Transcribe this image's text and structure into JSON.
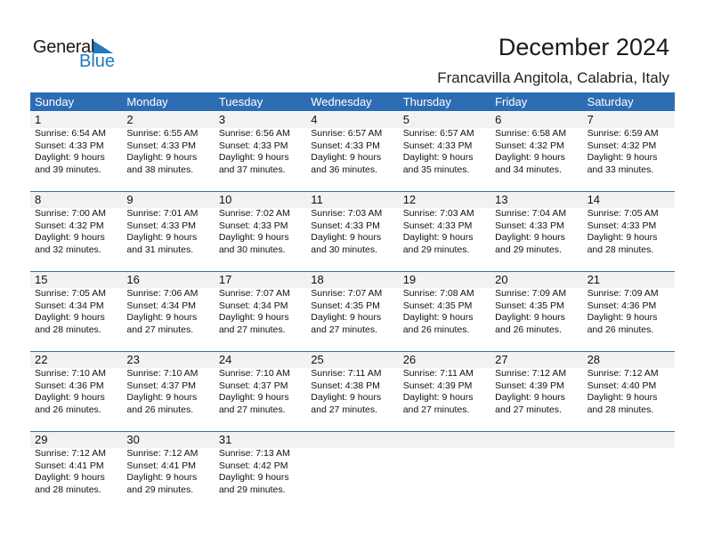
{
  "logo": {
    "text1": "General",
    "text2": "Blue",
    "color": "#1f7ac0"
  },
  "title": "December 2024",
  "location": "Francavilla Angitola, Calabria, Italy",
  "accent": "#2e6db4",
  "weekdays": [
    "Sunday",
    "Monday",
    "Tuesday",
    "Wednesday",
    "Thursday",
    "Friday",
    "Saturday"
  ],
  "weeks": [
    [
      {
        "day": "1",
        "sunrise": "Sunrise: 6:54 AM",
        "sunset": "Sunset: 4:33 PM",
        "daylight": "Daylight: 9 hours",
        "minutes": "and 39 minutes."
      },
      {
        "day": "2",
        "sunrise": "Sunrise: 6:55 AM",
        "sunset": "Sunset: 4:33 PM",
        "daylight": "Daylight: 9 hours",
        "minutes": "and 38 minutes."
      },
      {
        "day": "3",
        "sunrise": "Sunrise: 6:56 AM",
        "sunset": "Sunset: 4:33 PM",
        "daylight": "Daylight: 9 hours",
        "minutes": "and 37 minutes."
      },
      {
        "day": "4",
        "sunrise": "Sunrise: 6:57 AM",
        "sunset": "Sunset: 4:33 PM",
        "daylight": "Daylight: 9 hours",
        "minutes": "and 36 minutes."
      },
      {
        "day": "5",
        "sunrise": "Sunrise: 6:57 AM",
        "sunset": "Sunset: 4:33 PM",
        "daylight": "Daylight: 9 hours",
        "minutes": "and 35 minutes."
      },
      {
        "day": "6",
        "sunrise": "Sunrise: 6:58 AM",
        "sunset": "Sunset: 4:32 PM",
        "daylight": "Daylight: 9 hours",
        "minutes": "and 34 minutes."
      },
      {
        "day": "7",
        "sunrise": "Sunrise: 6:59 AM",
        "sunset": "Sunset: 4:32 PM",
        "daylight": "Daylight: 9 hours",
        "minutes": "and 33 minutes."
      }
    ],
    [
      {
        "day": "8",
        "sunrise": "Sunrise: 7:00 AM",
        "sunset": "Sunset: 4:32 PM",
        "daylight": "Daylight: 9 hours",
        "minutes": "and 32 minutes."
      },
      {
        "day": "9",
        "sunrise": "Sunrise: 7:01 AM",
        "sunset": "Sunset: 4:33 PM",
        "daylight": "Daylight: 9 hours",
        "minutes": "and 31 minutes."
      },
      {
        "day": "10",
        "sunrise": "Sunrise: 7:02 AM",
        "sunset": "Sunset: 4:33 PM",
        "daylight": "Daylight: 9 hours",
        "minutes": "and 30 minutes."
      },
      {
        "day": "11",
        "sunrise": "Sunrise: 7:03 AM",
        "sunset": "Sunset: 4:33 PM",
        "daylight": "Daylight: 9 hours",
        "minutes": "and 30 minutes."
      },
      {
        "day": "12",
        "sunrise": "Sunrise: 7:03 AM",
        "sunset": "Sunset: 4:33 PM",
        "daylight": "Daylight: 9 hours",
        "minutes": "and 29 minutes."
      },
      {
        "day": "13",
        "sunrise": "Sunrise: 7:04 AM",
        "sunset": "Sunset: 4:33 PM",
        "daylight": "Daylight: 9 hours",
        "minutes": "and 29 minutes."
      },
      {
        "day": "14",
        "sunrise": "Sunrise: 7:05 AM",
        "sunset": "Sunset: 4:33 PM",
        "daylight": "Daylight: 9 hours",
        "minutes": "and 28 minutes."
      }
    ],
    [
      {
        "day": "15",
        "sunrise": "Sunrise: 7:05 AM",
        "sunset": "Sunset: 4:34 PM",
        "daylight": "Daylight: 9 hours",
        "minutes": "and 28 minutes."
      },
      {
        "day": "16",
        "sunrise": "Sunrise: 7:06 AM",
        "sunset": "Sunset: 4:34 PM",
        "daylight": "Daylight: 9 hours",
        "minutes": "and 27 minutes."
      },
      {
        "day": "17",
        "sunrise": "Sunrise: 7:07 AM",
        "sunset": "Sunset: 4:34 PM",
        "daylight": "Daylight: 9 hours",
        "minutes": "and 27 minutes."
      },
      {
        "day": "18",
        "sunrise": "Sunrise: 7:07 AM",
        "sunset": "Sunset: 4:35 PM",
        "daylight": "Daylight: 9 hours",
        "minutes": "and 27 minutes."
      },
      {
        "day": "19",
        "sunrise": "Sunrise: 7:08 AM",
        "sunset": "Sunset: 4:35 PM",
        "daylight": "Daylight: 9 hours",
        "minutes": "and 26 minutes."
      },
      {
        "day": "20",
        "sunrise": "Sunrise: 7:09 AM",
        "sunset": "Sunset: 4:35 PM",
        "daylight": "Daylight: 9 hours",
        "minutes": "and 26 minutes."
      },
      {
        "day": "21",
        "sunrise": "Sunrise: 7:09 AM",
        "sunset": "Sunset: 4:36 PM",
        "daylight": "Daylight: 9 hours",
        "minutes": "and 26 minutes."
      }
    ],
    [
      {
        "day": "22",
        "sunrise": "Sunrise: 7:10 AM",
        "sunset": "Sunset: 4:36 PM",
        "daylight": "Daylight: 9 hours",
        "minutes": "and 26 minutes."
      },
      {
        "day": "23",
        "sunrise": "Sunrise: 7:10 AM",
        "sunset": "Sunset: 4:37 PM",
        "daylight": "Daylight: 9 hours",
        "minutes": "and 26 minutes."
      },
      {
        "day": "24",
        "sunrise": "Sunrise: 7:10 AM",
        "sunset": "Sunset: 4:37 PM",
        "daylight": "Daylight: 9 hours",
        "minutes": "and 27 minutes."
      },
      {
        "day": "25",
        "sunrise": "Sunrise: 7:11 AM",
        "sunset": "Sunset: 4:38 PM",
        "daylight": "Daylight: 9 hours",
        "minutes": "and 27 minutes."
      },
      {
        "day": "26",
        "sunrise": "Sunrise: 7:11 AM",
        "sunset": "Sunset: 4:39 PM",
        "daylight": "Daylight: 9 hours",
        "minutes": "and 27 minutes."
      },
      {
        "day": "27",
        "sunrise": "Sunrise: 7:12 AM",
        "sunset": "Sunset: 4:39 PM",
        "daylight": "Daylight: 9 hours",
        "minutes": "and 27 minutes."
      },
      {
        "day": "28",
        "sunrise": "Sunrise: 7:12 AM",
        "sunset": "Sunset: 4:40 PM",
        "daylight": "Daylight: 9 hours",
        "minutes": "and 28 minutes."
      }
    ],
    [
      {
        "day": "29",
        "sunrise": "Sunrise: 7:12 AM",
        "sunset": "Sunset: 4:41 PM",
        "daylight": "Daylight: 9 hours",
        "minutes": "and 28 minutes."
      },
      {
        "day": "30",
        "sunrise": "Sunrise: 7:12 AM",
        "sunset": "Sunset: 4:41 PM",
        "daylight": "Daylight: 9 hours",
        "minutes": "and 29 minutes."
      },
      {
        "day": "31",
        "sunrise": "Sunrise: 7:13 AM",
        "sunset": "Sunset: 4:42 PM",
        "daylight": "Daylight: 9 hours",
        "minutes": "and 29 minutes."
      }
    ]
  ]
}
